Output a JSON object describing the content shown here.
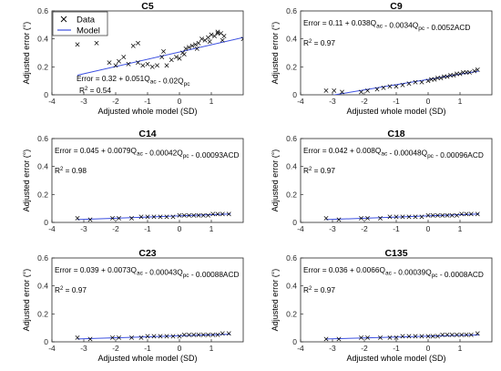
{
  "legend": {
    "items": [
      {
        "label": "Data",
        "marker": "x",
        "color": "#000000"
      },
      {
        "label": "Model",
        "marker": "line",
        "color": "#3b4fe0"
      }
    ]
  },
  "colors": {
    "data": "#000000",
    "model": "#3b4fe0",
    "axis": "#262626",
    "background": "#ffffff"
  },
  "chart_data": [
    {
      "type": "scatter",
      "title": "C5",
      "xlabel": "Adjusted whole model (SD)",
      "ylabel": "Adjusted error (°)",
      "xlim": [
        -4,
        2
      ],
      "ylim": [
        0,
        0.6
      ],
      "xticks": [
        "-4",
        "-3",
        "-2",
        "-1",
        "0",
        "1"
      ],
      "yticks": [
        "0",
        "0.2",
        "0.4",
        "0.6"
      ],
      "grid": false,
      "equation": "Error = 0.32 + 0.051Q_ac - 0.02Q_pc",
      "r2": "0.54",
      "annotation_position": "bottom-left",
      "model": {
        "x": [
          -3.2,
          2
        ],
        "y": [
          0.14,
          0.41
        ]
      },
      "series": [
        {
          "x": [
            -3.2,
            -2.6,
            -2.2,
            -1.9,
            -1.75,
            -1.6,
            -1.45,
            -1.3,
            -1.15,
            -1.0,
            -0.85,
            -0.7,
            -0.55,
            -0.4,
            -0.25,
            -0.1,
            0.0,
            0.1,
            0.2,
            0.3,
            0.4,
            0.5,
            0.6,
            0.7,
            0.8,
            0.9,
            1.0,
            1.1,
            1.2,
            1.3,
            1.4,
            -2.0,
            -1.3,
            -0.5,
            0.15,
            0.55,
            0.95,
            1.2,
            1.35,
            2.0
          ],
          "y": [
            0.36,
            0.37,
            0.23,
            0.24,
            0.27,
            0.22,
            0.35,
            0.23,
            0.21,
            0.22,
            0.2,
            0.21,
            0.27,
            0.21,
            0.25,
            0.27,
            0.26,
            0.3,
            0.33,
            0.34,
            0.35,
            0.36,
            0.37,
            0.4,
            0.39,
            0.41,
            0.43,
            0.42,
            0.45,
            0.44,
            0.42,
            0.21,
            0.37,
            0.31,
            0.29,
            0.33,
            0.38,
            0.44,
            0.39,
            0.4
          ]
        }
      ]
    },
    {
      "type": "scatter",
      "title": "C9",
      "xlabel": "Adjusted whole model (SD)",
      "ylabel": "Adjusted error (°)",
      "xlim": [
        -4,
        2
      ],
      "ylim": [
        0,
        0.6
      ],
      "xticks": [
        "-4",
        "-3",
        "-2",
        "-1",
        "0",
        "1"
      ],
      "yticks": [
        "0",
        "0.2",
        "0.4",
        "0.6"
      ],
      "grid": false,
      "equation": "Error = 0.11 + 0.038Q_ac - 0.0034Q_pc - 0.0052ACD",
      "r2": "0.97",
      "annotation_position": "top-left",
      "model": {
        "x": [
          -3.2,
          1.6
        ],
        "y": [
          -0.01,
          0.17
        ]
      },
      "series": [
        {
          "x": [
            -3.2,
            -2.95,
            -2.7,
            -2.1,
            -1.9,
            -1.6,
            -1.4,
            -1.2,
            -1.0,
            -0.8,
            -0.6,
            -0.4,
            -0.2,
            0.0,
            0.1,
            0.2,
            0.3,
            0.4,
            0.5,
            0.6,
            0.7,
            0.8,
            0.9,
            1.0,
            1.1,
            1.2,
            1.3,
            1.45,
            1.55
          ],
          "y": [
            0.03,
            0.03,
            0.02,
            0.02,
            0.03,
            0.04,
            0.05,
            0.06,
            0.06,
            0.07,
            0.08,
            0.09,
            0.09,
            0.1,
            0.11,
            0.11,
            0.12,
            0.12,
            0.13,
            0.13,
            0.14,
            0.14,
            0.15,
            0.15,
            0.16,
            0.16,
            0.16,
            0.17,
            0.18
          ]
        }
      ]
    },
    {
      "type": "scatter",
      "title": "C14",
      "xlabel": "",
      "ylabel": "Adjusted error (°)",
      "xlim": [
        -4,
        2
      ],
      "ylim": [
        0,
        0.6
      ],
      "xticks": [
        "-4",
        "-3",
        "-2",
        "-1",
        "0",
        "1"
      ],
      "yticks": [
        "0",
        "0.2",
        "0.4",
        "0.6"
      ],
      "grid": false,
      "equation": "Error = 0.045 + 0.0079Q_ac - 0.00042Q_pc - 0.00093ACD",
      "r2": "0.98",
      "annotation_position": "top-left",
      "model": {
        "x": [
          -3.2,
          1.6
        ],
        "y": [
          0.02,
          0.06
        ]
      },
      "series": [
        {
          "x": [
            -3.2,
            -2.8,
            -2.1,
            -1.9,
            -1.5,
            -1.2,
            -1.0,
            -0.8,
            -0.6,
            -0.4,
            -0.2,
            0.0,
            0.15,
            0.3,
            0.45,
            0.6,
            0.75,
            0.9,
            1.05,
            1.2,
            1.35,
            1.55
          ],
          "y": [
            0.03,
            0.02,
            0.03,
            0.03,
            0.03,
            0.04,
            0.04,
            0.04,
            0.04,
            0.04,
            0.04,
            0.05,
            0.05,
            0.05,
            0.05,
            0.05,
            0.05,
            0.05,
            0.06,
            0.06,
            0.06,
            0.06
          ]
        }
      ]
    },
    {
      "type": "scatter",
      "title": "C18",
      "xlabel": "",
      "ylabel": "Adjusted error (°)",
      "xlim": [
        -4,
        2
      ],
      "ylim": [
        0,
        0.6
      ],
      "xticks": [
        "-4",
        "-3",
        "-2",
        "-1",
        "0",
        "1"
      ],
      "yticks": [
        "0",
        "0.2",
        "0.4",
        "0.6"
      ],
      "grid": false,
      "equation": "Error = 0.042 + 0.008Q_ac - 0.00048Q_pc - 0.00096ACD",
      "r2": "0.97",
      "annotation_position": "top-left",
      "model": {
        "x": [
          -3.2,
          1.6
        ],
        "y": [
          0.02,
          0.06
        ]
      },
      "series": [
        {
          "x": [
            -3.2,
            -2.8,
            -2.1,
            -1.9,
            -1.5,
            -1.2,
            -1.0,
            -0.8,
            -0.6,
            -0.4,
            -0.2,
            0.0,
            0.15,
            0.3,
            0.45,
            0.6,
            0.75,
            0.9,
            1.05,
            1.2,
            1.35,
            1.55
          ],
          "y": [
            0.03,
            0.02,
            0.03,
            0.03,
            0.03,
            0.04,
            0.04,
            0.04,
            0.04,
            0.04,
            0.04,
            0.05,
            0.05,
            0.05,
            0.05,
            0.05,
            0.05,
            0.05,
            0.06,
            0.06,
            0.06,
            0.06
          ]
        }
      ]
    },
    {
      "type": "scatter",
      "title": "C23",
      "xlabel": "Adjusted whole model (SD)",
      "ylabel": "Adjusted error (°)",
      "xlim": [
        -4,
        2
      ],
      "ylim": [
        0,
        0.6
      ],
      "xticks": [
        "-4",
        "-3",
        "-2",
        "-1",
        "0",
        "1"
      ],
      "yticks": [
        "0",
        "0.2",
        "0.4",
        "0.6"
      ],
      "grid": false,
      "equation": "Error = 0.039 + 0.0073Q_ac - 0.00043Q_pc - 0.00088ACD",
      "r2": "0.97",
      "annotation_position": "top-left",
      "model": {
        "x": [
          -3.2,
          1.6
        ],
        "y": [
          0.02,
          0.055
        ]
      },
      "series": [
        {
          "x": [
            -3.2,
            -2.8,
            -2.1,
            -1.9,
            -1.5,
            -1.2,
            -1.0,
            -0.8,
            -0.6,
            -0.4,
            -0.2,
            0.0,
            0.15,
            0.3,
            0.45,
            0.6,
            0.75,
            0.9,
            1.05,
            1.2,
            1.35,
            1.55
          ],
          "y": [
            0.03,
            0.02,
            0.03,
            0.03,
            0.03,
            0.03,
            0.04,
            0.04,
            0.04,
            0.04,
            0.04,
            0.04,
            0.05,
            0.05,
            0.05,
            0.05,
            0.05,
            0.05,
            0.05,
            0.05,
            0.06,
            0.06
          ]
        }
      ]
    },
    {
      "type": "scatter",
      "title": "C135",
      "xlabel": "Adjusted whole model (SD)",
      "ylabel": "Adjusted error (°)",
      "xlim": [
        -4,
        2
      ],
      "ylim": [
        0,
        0.6
      ],
      "xticks": [
        "-4",
        "-3",
        "-2",
        "-1",
        "0",
        "1"
      ],
      "yticks": [
        "0",
        "0.2",
        "0.4",
        "0.6"
      ],
      "grid": false,
      "equation": "Error = 0.036 + 0.0066Q_ac - 0.00039Q_pc - 0.0008ACD",
      "r2": "0.97",
      "annotation_position": "top-left",
      "model": {
        "x": [
          -3.2,
          1.6
        ],
        "y": [
          0.02,
          0.05
        ]
      },
      "series": [
        {
          "x": [
            -3.2,
            -2.8,
            -2.1,
            -1.9,
            -1.5,
            -1.2,
            -1.0,
            -0.8,
            -0.6,
            -0.4,
            -0.2,
            0.0,
            0.15,
            0.3,
            0.45,
            0.6,
            0.75,
            0.9,
            1.05,
            1.2,
            1.35,
            1.55
          ],
          "y": [
            0.02,
            0.02,
            0.03,
            0.03,
            0.03,
            0.03,
            0.03,
            0.04,
            0.04,
            0.04,
            0.04,
            0.04,
            0.04,
            0.04,
            0.05,
            0.05,
            0.05,
            0.05,
            0.05,
            0.05,
            0.05,
            0.06
          ]
        }
      ]
    }
  ]
}
